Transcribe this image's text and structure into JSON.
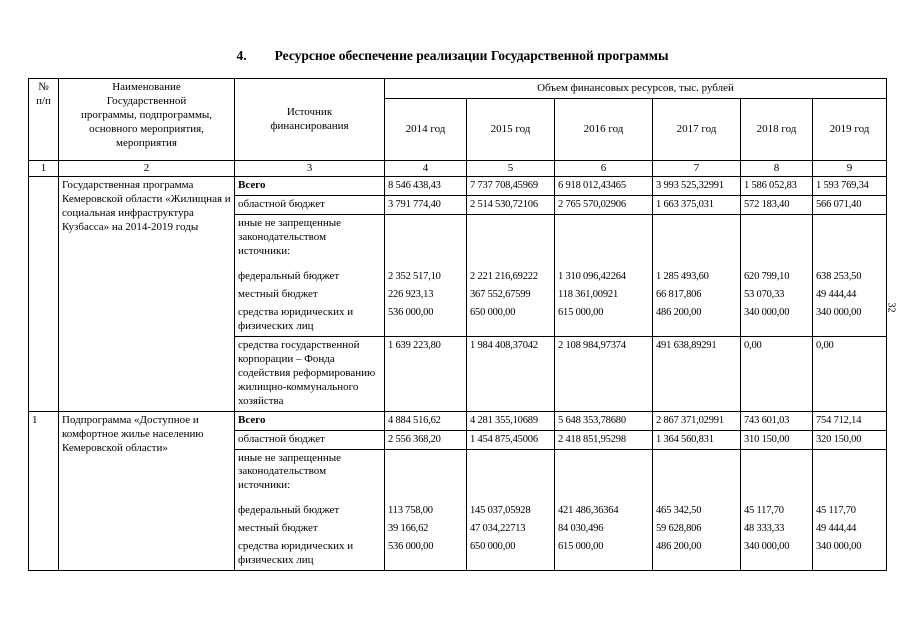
{
  "page": {
    "section_number": "4.",
    "section_title": "Ресурсное обеспечение реализации Государственной программы",
    "side_page_number": "32"
  },
  "table": {
    "header": {
      "num": "№\nп/п",
      "name": "Наименование\nГосударственной\nпрограммы, подпрограммы,\nосновного мероприятия,\nмероприятия",
      "source": "Источник\nфинансирования",
      "volume": "Объем финансовых ресурсов, тыс. рублей",
      "years": [
        "2014 год",
        "2015 год",
        "2016 год",
        "2017 год",
        "2018 год",
        "2019 год"
      ],
      "column_numbers": [
        "1",
        "2",
        "3",
        "4",
        "5",
        "6",
        "7",
        "8",
        "9"
      ]
    },
    "groups": [
      {
        "num": "",
        "name": "Государственная программа Кемеровской области «Жилищная и социальная инфраструктура Кузбасса» на 2014-2019 годы",
        "rows": [
          {
            "source": "Всего",
            "style": "total",
            "values": [
              "8 546 438,43",
              "7 737 708,45969",
              "6 918 012,43465",
              "3 993 525,32991",
              "1 586 052,83",
              "1 593 769,34"
            ]
          },
          {
            "source": "областной бюджет",
            "style": "",
            "values": [
              "3 791 774,40",
              "2 514 530,72106",
              "2 765 570,02906",
              "1 663 375,031",
              "572 183,40",
              "566 071,40"
            ]
          },
          {
            "source": "иные не запрещенные законодательством источники:",
            "style": "subhead",
            "values": [
              "",
              "",
              "",
              "",
              "",
              ""
            ]
          },
          {
            "source": "федеральный бюджет",
            "style": "sub",
            "values": [
              "2 352 517,10",
              "2 221 216,69222",
              "1 310 096,42264",
              "1 285 493,60",
              "620 799,10",
              "638 253,50"
            ]
          },
          {
            "source": "местный бюджет",
            "style": "sub",
            "values": [
              "226 923,13",
              "367 552,67599",
              "118 361,00921",
              "66 817,806",
              "53 070,33",
              "49 444,44"
            ]
          },
          {
            "source": "средства юридических и физических лиц",
            "style": "sublast",
            "values": [
              "536 000,00",
              "650 000,00",
              "615 000,00",
              "486 200,00",
              "340 000,00",
              "340 000,00"
            ]
          },
          {
            "source": "средства государственной корпорации – Фонда содействия реформирова­нию жилищно-коммунального хозяйства",
            "style": "",
            "values": [
              "1 639 223,80",
              "1 984 408,37042",
              "2 108 984,97374",
              "491 638,89291",
              "0,00",
              "0,00"
            ]
          }
        ]
      },
      {
        "num": "1",
        "name": "Подпрограмма «Доступное и комфортное жилье населению Кемеровской области»",
        "rows": [
          {
            "source": "Всего",
            "style": "total",
            "values": [
              "4 884 516,62",
              "4 281 355,10689",
              "5 648 353,78680",
              "2 867 371,02991",
              "743 601,03",
              "754 712,14"
            ]
          },
          {
            "source": "областной бюджет",
            "style": "",
            "values": [
              "2 556 368,20",
              "1 454 875,45006",
              "2 418 851,95298",
              "1 364 560,831",
              "310 150,00",
              "320 150,00"
            ]
          },
          {
            "source": "иные не запрещенные законодательством источники:",
            "style": "subhead",
            "values": [
              "",
              "",
              "",
              "",
              "",
              ""
            ]
          },
          {
            "source": "федеральный бюджет",
            "style": "sub",
            "values": [
              "113 758,00",
              "145 037,05928",
              "421 486,36364",
              "465 342,50",
              "45 117,70",
              "45 117,70"
            ]
          },
          {
            "source": "местный бюджет",
            "style": "sub",
            "values": [
              "39 166,62",
              "47 034,22713",
              "84 030,496",
              "59 628,806",
              "48 333,33",
              "49 444,44"
            ]
          },
          {
            "source": "средства юридических и физических лиц",
            "style": "sublast",
            "values": [
              "536 000,00",
              "650 000,00",
              "615 000,00",
              "486 200,00",
              "340 000,00",
              "340 000,00"
            ]
          }
        ]
      }
    ]
  }
}
